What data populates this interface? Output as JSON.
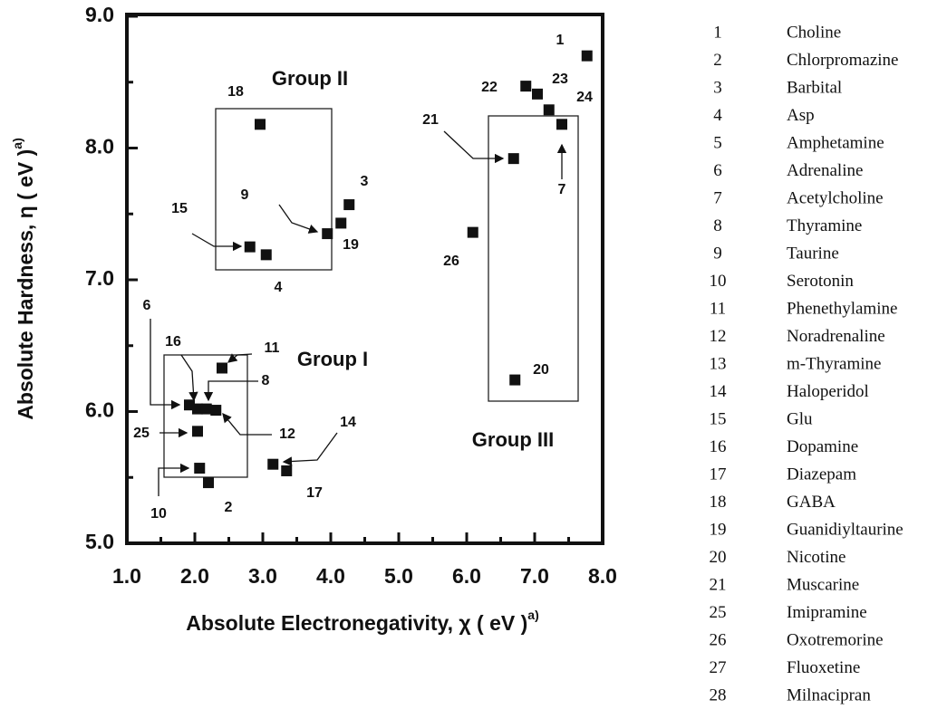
{
  "chart_data": {
    "type": "scatter",
    "x_label": "Absolute Electronegativity, χ ( eV )",
    "x_label_sup": "a)",
    "y_label": "Absolute Hardness, η ( eV )",
    "y_label_sup": "a)",
    "xlim": [
      1.0,
      8.0
    ],
    "ylim": [
      5.0,
      9.0
    ],
    "xticks": [
      {
        "value": 1,
        "label": "1.0"
      },
      {
        "value": 2,
        "label": "2.0"
      },
      {
        "value": 3,
        "label": "3.0"
      },
      {
        "value": 4,
        "label": "4.0"
      },
      {
        "value": 5,
        "label": "5.0"
      },
      {
        "value": 6,
        "label": "6.0"
      },
      {
        "value": 7,
        "label": "7.0"
      },
      {
        "value": 8,
        "label": "8.0"
      }
    ],
    "yticks": [
      {
        "value": 5,
        "label": "5.0"
      },
      {
        "value": 6,
        "label": "6.0"
      },
      {
        "value": 7,
        "label": "7.0"
      },
      {
        "value": 8,
        "label": "8.0"
      },
      {
        "value": 9,
        "label": "9.0"
      }
    ],
    "color": "#111111",
    "labels": [
      "1",
      "22",
      "23",
      "24",
      "7",
      "21",
      "26",
      "20",
      "18",
      "3",
      "19",
      "9",
      "15",
      "4",
      "11",
      "6",
      "16",
      "8",
      "12",
      "25",
      "10",
      "2",
      "14",
      "17"
    ],
    "x": [
      7.77,
      6.87,
      7.04,
      7.21,
      7.4,
      6.69,
      6.09,
      6.71,
      2.96,
      4.27,
      4.15,
      3.95,
      2.81,
      3.05,
      2.4,
      1.92,
      2.04,
      2.17,
      2.31,
      2.04,
      2.07,
      2.2,
      3.15,
      3.35
    ],
    "y": [
      8.7,
      8.47,
      8.41,
      8.29,
      8.18,
      7.92,
      7.36,
      6.24,
      8.18,
      7.57,
      7.43,
      7.35,
      7.25,
      7.19,
      6.33,
      6.05,
      6.02,
      6.02,
      6.01,
      5.85,
      5.57,
      5.46,
      5.6,
      5.55
    ],
    "annotations": [
      "Group II",
      "Group I",
      "Group III"
    ]
  },
  "legend": {
    "numbers": [
      "1",
      "2",
      "3",
      "4",
      "5",
      "6",
      "7",
      "8",
      "9",
      "10",
      "11",
      "12",
      "13",
      "14",
      "15",
      "16",
      "17",
      "18",
      "19",
      "20",
      "21",
      "25",
      "26",
      "27",
      "28"
    ],
    "names": [
      "Choline",
      "Chlorpromazine",
      "Barbital",
      "Asp",
      "Amphetamine",
      "Adrenaline",
      "Acetylcholine",
      "Thyramine",
      "Taurine",
      "Serotonin",
      "Phenethylamine",
      "Noradrenaline",
      "m-Thyramine",
      "Haloperidol",
      "Glu",
      "Dopamine",
      "Diazepam",
      "GABA",
      "Guanidiyltaurine",
      "Nicotine",
      "Muscarine",
      "Imipramine",
      "Oxotremorine",
      "Fluoxetine",
      "Milnacipran"
    ]
  }
}
